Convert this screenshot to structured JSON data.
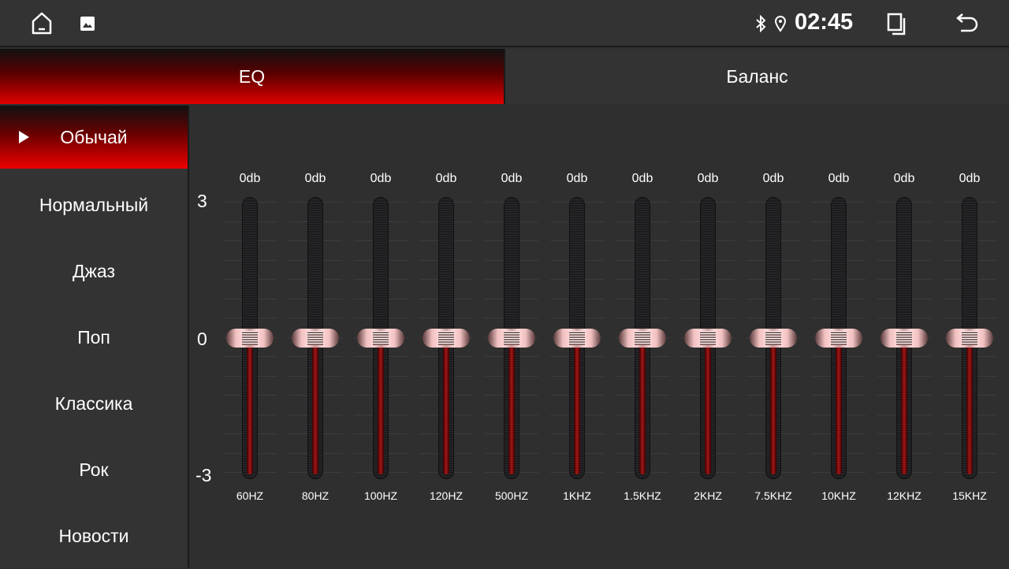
{
  "status_bar": {
    "time": "02:45",
    "icons": [
      "home-icon",
      "image-icon",
      "bluetooth-icon",
      "location-icon",
      "recent-apps-icon",
      "back-icon"
    ]
  },
  "tabs": [
    {
      "label": "EQ",
      "active": true
    },
    {
      "label": "Баланс",
      "active": false
    }
  ],
  "presets": [
    {
      "label": "Обычай",
      "active": true
    },
    {
      "label": "Нормальный"
    },
    {
      "label": "Джаз"
    },
    {
      "label": "Поп"
    },
    {
      "label": "Классика"
    },
    {
      "label": "Рок"
    },
    {
      "label": "Новости"
    }
  ],
  "eq": {
    "scale": {
      "max": "3",
      "mid": "0",
      "min": "-3"
    },
    "range": [
      -3,
      3
    ],
    "bands": [
      {
        "freq": "60HZ",
        "label": "0db",
        "value": 0
      },
      {
        "freq": "80HZ",
        "label": "0db",
        "value": 0
      },
      {
        "freq": "100HZ",
        "label": "0db",
        "value": 0
      },
      {
        "freq": "120HZ",
        "label": "0db",
        "value": 0
      },
      {
        "freq": "500HZ",
        "label": "0db",
        "value": 0
      },
      {
        "freq": "1KHZ",
        "label": "0db",
        "value": 0
      },
      {
        "freq": "1.5KHZ",
        "label": "0db",
        "value": 0
      },
      {
        "freq": "2KHZ",
        "label": "0db",
        "value": 0
      },
      {
        "freq": "7.5KHZ",
        "label": "0db",
        "value": 0
      },
      {
        "freq": "10KHZ",
        "label": "0db",
        "value": 0
      },
      {
        "freq": "12KHZ",
        "label": "0db",
        "value": 0
      },
      {
        "freq": "15KHZ",
        "label": "0db",
        "value": 0
      }
    ]
  },
  "colors": {
    "accent": "#e00000",
    "background": "#2f2f2f"
  }
}
